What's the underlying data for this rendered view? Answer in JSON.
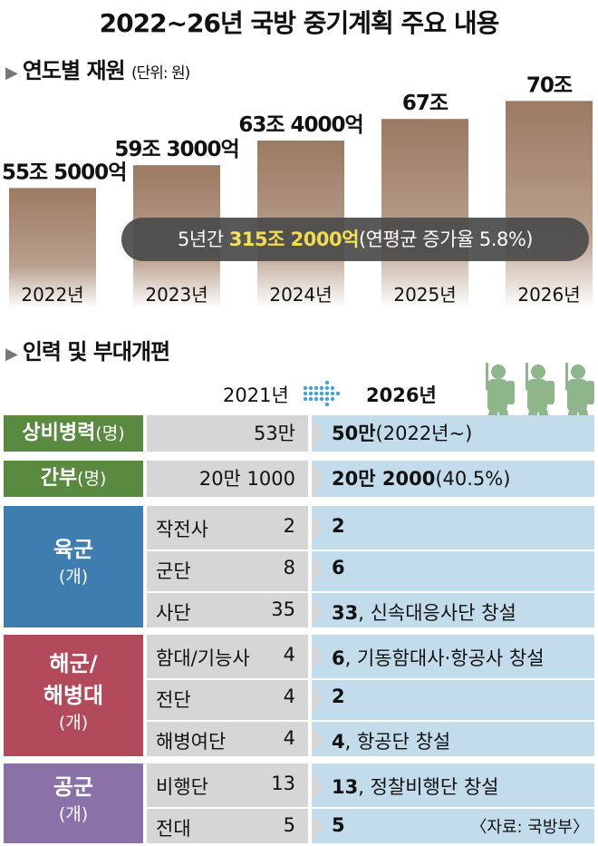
{
  "title": "2022~26년 국방 중기계획 주요 내용",
  "section1": {
    "heading": "연도별 재원",
    "unit": "(단위: 원)"
  },
  "chart_data": {
    "type": "bar",
    "title": "연도별 재원",
    "categories": [
      "2022년",
      "2023년",
      "2024년",
      "2025년",
      "2026년"
    ],
    "values": [
      55.5,
      59.3,
      63.4,
      67,
      70
    ],
    "value_unit": "조 원",
    "data_labels": [
      "55조 5000억",
      "59조 3000억",
      "63조 4000억",
      "67조",
      "70조"
    ],
    "bar_color": "#9c7a62"
  },
  "summary": {
    "prefix": "5년간 ",
    "highlight": "315조 2000억",
    "suffix": "(연평균 증가율 5.8%)"
  },
  "section2": {
    "heading": "인력 및 부대개편"
  },
  "table_header": {
    "from": "2021년",
    "to": "2026년"
  },
  "rows": {
    "troops": {
      "label": "상비병력",
      "unit": "(명)",
      "from": "53만",
      "to_bold": "50만",
      "to_rest": "(2022년~)"
    },
    "cadre": {
      "label": "간부",
      "unit": "(명)",
      "from": "20만 1000",
      "to_bold": "20만 2000",
      "to_rest": "(40.5%)"
    }
  },
  "army": {
    "name": "육군",
    "unit": "(개)",
    "items": [
      {
        "name": "작전사",
        "from": "2",
        "to_bold": "2",
        "to_rest": ""
      },
      {
        "name": "군단",
        "from": "8",
        "to_bold": "6",
        "to_rest": ""
      },
      {
        "name": "사단",
        "from": "35",
        "to_bold": "33",
        "to_rest": ", 신속대응사단 창설"
      }
    ]
  },
  "navy": {
    "name1": "해군/",
    "name2": "해병대",
    "unit": "(개)",
    "items": [
      {
        "name": "함대/기능사",
        "from": "4",
        "to_bold": "6",
        "to_rest": ", 기동함대사·항공사 창설"
      },
      {
        "name": "전단",
        "from": "4",
        "to_bold": "2",
        "to_rest": ""
      },
      {
        "name": "해병여단",
        "from": "4",
        "to_bold": "4",
        "to_rest": ", 항공단 창설"
      }
    ]
  },
  "airforce": {
    "name": "공군",
    "unit": "(개)",
    "items": [
      {
        "name": "비행단",
        "from": "13",
        "to_bold": "13",
        "to_rest": ", 정찰비행단 창설"
      },
      {
        "name": "전대",
        "from": "5",
        "to_bold": "5",
        "to_rest": ""
      }
    ]
  },
  "source": "〈자료: 국방부〉",
  "colors": {
    "green": "#5a8a3f",
    "army": "#3f7db1",
    "navy": "#b34a5c",
    "air": "#8a72a8",
    "gray": "#d6d6d6",
    "blue": "#c3dcec"
  }
}
